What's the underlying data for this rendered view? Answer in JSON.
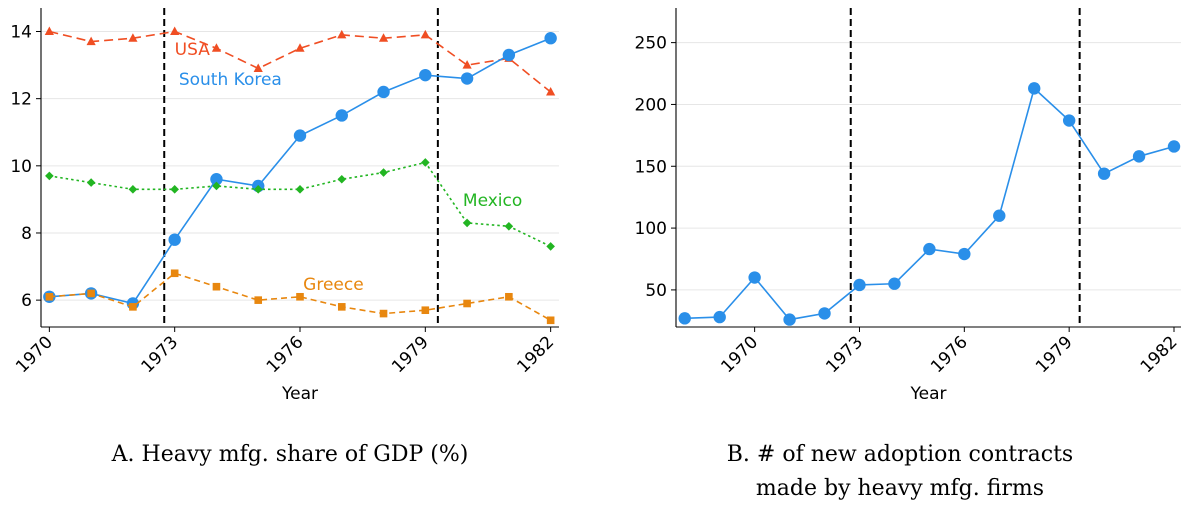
{
  "colors": {
    "usa": "#f04e23",
    "south_korea": "#2a8fe9",
    "mexico": "#22b522",
    "greece": "#e8870f",
    "grid": "#e6e6e6",
    "vline": "#000000"
  },
  "captions": {
    "a": "A. Heavy mfg. share of GDP (%)",
    "b_line1": "B. # of new adoption contracts",
    "b_line2": "made by heavy mfg. firms"
  },
  "chart_data": [
    {
      "type": "line",
      "xlabel": "Year",
      "ylabel": "",
      "xlim": [
        1969.8,
        1982.2
      ],
      "ylim": [
        5.2,
        14.7
      ],
      "xticks": [
        1970,
        1973,
        1976,
        1979,
        1982
      ],
      "yticks": [
        6,
        8,
        10,
        12,
        14
      ],
      "grid": true,
      "vlines": [
        1972.75,
        1979.3
      ],
      "x": [
        1970,
        1971,
        1972,
        1973,
        1974,
        1975,
        1976,
        1977,
        1978,
        1979,
        1980,
        1981,
        1982
      ],
      "series": [
        {
          "name": "USA",
          "color_key": "usa",
          "marker": "triangle",
          "dash": "long",
          "values": [
            14.0,
            13.7,
            13.8,
            14.0,
            13.5,
            12.9,
            13.5,
            13.9,
            13.8,
            13.9,
            13.0,
            13.2,
            12.2
          ]
        },
        {
          "name": "South Korea",
          "color_key": "south_korea",
          "marker": "circle",
          "dash": "solid",
          "values": [
            6.1,
            6.2,
            5.9,
            7.8,
            9.6,
            9.4,
            10.9,
            11.5,
            12.2,
            12.7,
            12.6,
            13.3,
            13.8
          ]
        },
        {
          "name": "Mexico",
          "color_key": "mexico",
          "marker": "diamond",
          "dash": "dot",
          "values": [
            9.7,
            9.5,
            9.3,
            9.3,
            9.4,
            9.3,
            9.3,
            9.6,
            9.8,
            10.1,
            8.3,
            8.2,
            7.6
          ]
        },
        {
          "name": "Greece",
          "color_key": "greece",
          "marker": "square",
          "dash": "medium",
          "values": [
            6.1,
            6.2,
            5.8,
            6.8,
            6.4,
            6.0,
            6.1,
            5.8,
            5.6,
            5.7,
            5.9,
            6.1,
            5.4
          ]
        }
      ]
    },
    {
      "type": "line",
      "xlabel": "Year",
      "ylabel": "",
      "xlim": [
        1967.75,
        1982.2
      ],
      "ylim": [
        20,
        278
      ],
      "xticks": [
        1970,
        1973,
        1976,
        1979,
        1982
      ],
      "yticks": [
        50,
        100,
        150,
        200,
        250
      ],
      "grid": true,
      "vlines": [
        1972.75,
        1979.3
      ],
      "x": [
        1968,
        1969,
        1970,
        1971,
        1972,
        1973,
        1974,
        1975,
        1976,
        1977,
        1978,
        1979,
        1980,
        1981,
        1982
      ],
      "series": [
        {
          "color_key": "south_korea",
          "marker": "circle",
          "dash": "solid",
          "values": [
            27,
            28,
            60,
            26,
            31,
            54,
            55,
            83,
            79,
            110,
            213,
            187,
            144,
            158,
            166
          ]
        }
      ]
    }
  ]
}
